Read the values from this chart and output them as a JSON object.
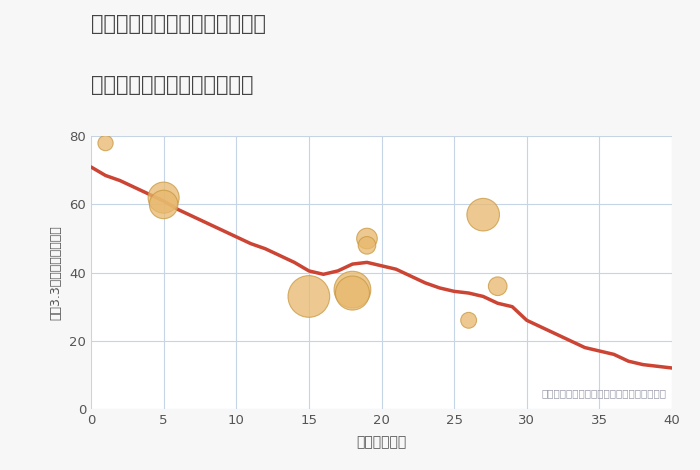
{
  "title_line1": "福岡県北九州市小倉南区湯川の",
  "title_line2": "築年数別中古マンション価格",
  "xlabel": "築年数（年）",
  "ylabel": "坪（3.3㎡）単価（万円）",
  "xlim": [
    0,
    40
  ],
  "ylim": [
    0,
    80
  ],
  "xticks": [
    0,
    5,
    10,
    15,
    20,
    25,
    30,
    35,
    40
  ],
  "yticks": [
    0,
    20,
    40,
    60,
    80
  ],
  "background_color": "#f7f7f7",
  "plot_bg_color": "#ffffff",
  "grid_color": "#c5d5e5",
  "annotation": "円の大きさは、取引のあった物件面積を示す",
  "annotation_color": "#9999aa",
  "line_color": "#cc4433",
  "line_width": 2.5,
  "line_x": [
    0,
    1,
    2,
    3,
    4,
    5,
    6,
    7,
    8,
    9,
    10,
    11,
    12,
    13,
    14,
    15,
    16,
    17,
    18,
    19,
    20,
    21,
    22,
    23,
    24,
    25,
    26,
    27,
    28,
    29,
    30,
    31,
    32,
    33,
    34,
    35,
    36,
    37,
    38,
    39,
    40
  ],
  "line_y": [
    71,
    68.5,
    67,
    65,
    63,
    61,
    58.5,
    56.5,
    54.5,
    52.5,
    50.5,
    48.5,
    47,
    45,
    43,
    40.5,
    39.5,
    40.5,
    42.5,
    43,
    42,
    41,
    39,
    37,
    35.5,
    34.5,
    34,
    33,
    31,
    30,
    26,
    24,
    22,
    20,
    18,
    17,
    16,
    14,
    13,
    12.5,
    12
  ],
  "scatter_x": [
    1,
    5,
    5,
    15,
    18,
    18,
    19,
    19,
    27,
    26,
    28
  ],
  "scatter_y": [
    78,
    62,
    60,
    33,
    35,
    34,
    50,
    48,
    57,
    26,
    36
  ],
  "scatter_sizes": [
    120,
    500,
    420,
    900,
    700,
    600,
    220,
    160,
    550,
    130,
    180
  ],
  "scatter_color": "#e8b86d",
  "scatter_alpha": 0.75,
  "scatter_edge_color": "#c89840",
  "scatter_edge_width": 0.8,
  "title_color": "#444444",
  "tick_color": "#555555"
}
